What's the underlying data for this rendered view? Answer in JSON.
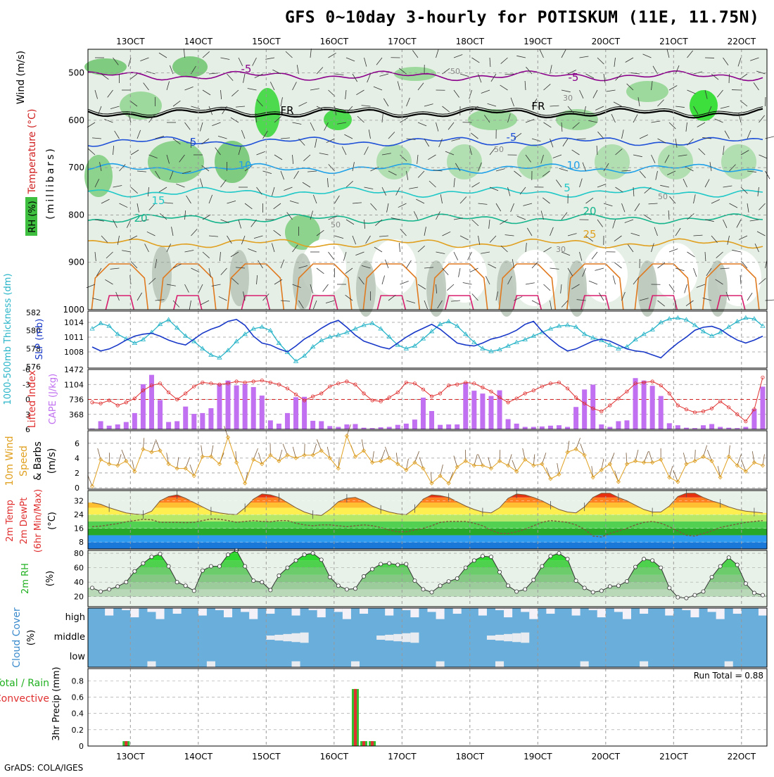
{
  "title": "GFS 0~10day 3-hourly for POTISKUM (11E, 11.75N)",
  "footer": "GrADS: COLA/IGES",
  "time_axis": {
    "labels": [
      "13OCT",
      "14OCT",
      "15OCT",
      "16OCT",
      "17OCT",
      "18OCT",
      "19OCT",
      "20OCT",
      "21OCT",
      "22OCT"
    ],
    "steps": 80,
    "first_label_step": 5
  },
  "chart_data": [
    {
      "type": "heatmap",
      "panel": "upper-air",
      "ylabels": [
        "Wind (m/s)",
        "Temperature (°C)",
        "RH (%)",
        "(millibars)"
      ],
      "yticks": [
        500,
        600,
        700,
        800,
        900,
        1000
      ],
      "ylim": [
        450,
        1000
      ],
      "rh_contour_labels": [
        "50",
        "30",
        "50",
        "50",
        "50",
        "30"
      ],
      "temperature_isotherms": [
        {
          "label": "-5",
          "level": 506,
          "color": "#8B008B"
        },
        {
          "label": "FR",
          "level": 585,
          "color": "#000000"
        },
        {
          "label": "-5",
          "level": 645,
          "color": "#1E50D8"
        },
        {
          "label": "10",
          "level": 702,
          "color": "#1EA0E8"
        },
        {
          "label": "15",
          "level": 752,
          "color": "#20C8C8"
        },
        {
          "label": "20",
          "level": 808,
          "color": "#14B48C"
        },
        {
          "label": "25",
          "level": 860,
          "color": "#E0A020"
        }
      ],
      "legend_extra": [
        "-5",
        "10",
        "5",
        "20",
        "25",
        "FR",
        "-5"
      ]
    },
    {
      "type": "line",
      "panel": "thickness-slp",
      "ylabel_left": "1000-500mb Thickness (dm)",
      "ylabel_right": "SLP (mb)",
      "yticks_left": [
        576,
        578,
        580,
        582
      ],
      "yticks_right": [
        1008,
        1011,
        1014
      ],
      "series": [
        {
          "name": "Thickness (dm)",
          "values": [
            580.2,
            580.8,
            580.5,
            579.6,
            579.1,
            578.6,
            579.0,
            579.8,
            580.7,
            581.2,
            580.3,
            579.4,
            578.8,
            578.0,
            577.3,
            577.0,
            577.8,
            578.8,
            579.6,
            580.2,
            580.4,
            580.0,
            578.6,
            577.6,
            576.6,
            577.2,
            578.2,
            578.9,
            579.3,
            579.5,
            579.8,
            580.2,
            580.6,
            580.8,
            580.2,
            579.3,
            578.4,
            578.0,
            578.3,
            579.1,
            579.9,
            580.7,
            581.0,
            580.5,
            579.6,
            578.7,
            578.0,
            577.7,
            577.9,
            578.3,
            578.7,
            579.0,
            579.4,
            579.8,
            580.2,
            580.5,
            580.6,
            580.4,
            579.6,
            579.2,
            578.9,
            578.4,
            578.0,
            578.2,
            579.0,
            579.6,
            580.1,
            580.9,
            581.3,
            581.4,
            581.2,
            580.6,
            579.9,
            579.4,
            579.8,
            580.4,
            581.0,
            581.4,
            581.3,
            580.5
          ]
        },
        {
          "name": "SLP (mb)",
          "values": [
            1009.0,
            1008.2,
            1008.6,
            1009.4,
            1010.4,
            1011.2,
            1011.6,
            1011.8,
            1011.2,
            1010.4,
            1009.8,
            1009.4,
            1010.6,
            1011.8,
            1012.6,
            1013.2,
            1014.2,
            1014.6,
            1013.4,
            1011.2,
            1009.8,
            1009.4,
            1008.6,
            1008.0,
            1009.2,
            1010.6,
            1011.6,
            1012.8,
            1013.8,
            1014.4,
            1013.0,
            1011.4,
            1010.2,
            1009.6,
            1009.0,
            1008.6,
            1009.8,
            1011.0,
            1012.0,
            1012.8,
            1013.6,
            1012.6,
            1011.2,
            1009.8,
            1009.4,
            1009.2,
            1009.8,
            1010.6,
            1011.0,
            1011.6,
            1012.4,
            1013.6,
            1014.2,
            1012.2,
            1010.6,
            1009.2,
            1008.2,
            1008.6,
            1009.4,
            1010.2,
            1010.6,
            1010.2,
            1009.4,
            1008.6,
            1008.2,
            1008.0,
            1007.4,
            1006.8,
            1008.4,
            1009.8,
            1011.0,
            1012.4,
            1013.0,
            1013.2,
            1012.6,
            1011.4,
            1010.4,
            1009.8,
            1010.4,
            1011.2
          ]
        }
      ]
    },
    {
      "type": "bar",
      "panel": "lifted-cape",
      "ylabel_left": "Lifted Index",
      "ylabel_right": "CAPE (J/kg)",
      "yticks_left": [
        "-6",
        "-3",
        "0",
        "3",
        "6"
      ],
      "yticks_right": [
        "368",
        "736",
        "1104",
        "1472"
      ],
      "series": [
        {
          "name": "CAPE (J/kg)",
          "values": [
            20,
            200,
            90,
            120,
            180,
            400,
            1110,
            1340,
            720,
            180,
            200,
            560,
            380,
            400,
            520,
            1120,
            1200,
            1080,
            1120,
            1040,
            830,
            220,
            140,
            400,
            790,
            800,
            210,
            200,
            80,
            60,
            120,
            130,
            40,
            30,
            50,
            60,
            110,
            140,
            240,
            780,
            450,
            110,
            120,
            120,
            1150,
            950,
            880,
            820,
            960,
            250,
            140,
            60,
            60,
            70,
            90,
            100,
            60,
            550,
            980,
            1100,
            120,
            60,
            200,
            220,
            1260,
            1200,
            1070,
            820,
            150,
            100,
            40,
            30,
            100,
            130,
            60,
            40,
            30,
            60,
            500,
            1050
          ]
        },
        {
          "name": "Lifted Index",
          "values": [
            0.6,
            0.8,
            0.2,
            1.2,
            0.6,
            -0.2,
            -1.8,
            -2.8,
            -3.2,
            -1.4,
            0.0,
            -1.2,
            -2.6,
            -3.4,
            -3.2,
            -3.0,
            -3.2,
            -3.6,
            -3.4,
            -3.6,
            -3.8,
            -3.4,
            -3.0,
            -2.2,
            -1.0,
            0.2,
            -0.6,
            -1.2,
            -2.6,
            -3.2,
            -3.6,
            -3.0,
            -1.2,
            0.2,
            0.4,
            -0.4,
            -1.4,
            -3.4,
            -3.2,
            -2.0,
            -0.6,
            -1.2,
            -2.8,
            -3.0,
            -3.4,
            -3.2,
            -2.4,
            -1.6,
            -0.4,
            0.6,
            -0.2,
            -1.2,
            -1.8,
            -2.6,
            -3.2,
            -3.4,
            -2.2,
            -0.4,
            0.8,
            1.8,
            2.4,
            1.2,
            -0.2,
            -1.6,
            -3.2,
            -3.4,
            -3.6,
            -2.8,
            -1.2,
            1.2,
            2.0,
            2.6,
            2.4,
            1.8,
            0.4,
            1.6,
            3.0,
            4.4,
            2.0,
            -4.4
          ]
        }
      ]
    },
    {
      "type": "line",
      "panel": "wind-10m",
      "ylabel_lines": [
        "10m Wind",
        "Speed",
        "& Barbs",
        "(m/s)"
      ],
      "yticks": [
        "0",
        "2",
        "4",
        "6"
      ],
      "series": [
        {
          "name": "10m wind speed (m/s)",
          "values": [
            0.2,
            3.8,
            3.2,
            3.0,
            3.6,
            2.2,
            5.2,
            4.8,
            5.0,
            3.2,
            2.6,
            2.6,
            1.6,
            4.2,
            4.2,
            3.2,
            6.8,
            3.4,
            0.6,
            3.8,
            3.2,
            4.4,
            3.6,
            4.4,
            4.0,
            4.4,
            4.4,
            5.0,
            4.0,
            2.6,
            7.0,
            4.2,
            5.0,
            3.4,
            3.6,
            4.0,
            3.2,
            2.4,
            3.4,
            2.6,
            0.6,
            1.6,
            0.6,
            2.8,
            3.6,
            3.0,
            3.0,
            2.6,
            3.6,
            3.0,
            2.2,
            3.8,
            3.0,
            3.2,
            1.2,
            1.8,
            4.8,
            5.2,
            4.4,
            1.4,
            2.4,
            3.2,
            0.8,
            3.2,
            3.6,
            3.4,
            3.4,
            3.8,
            1.4,
            0.8,
            3.2,
            3.6,
            4.2,
            3.6,
            1.4,
            4.2,
            3.0,
            2.2,
            3.4,
            3.0
          ]
        }
      ]
    },
    {
      "type": "area",
      "panel": "temp-dewpoint",
      "ylabel_lines": [
        "2m Temp",
        "2m DewPt",
        "(6hr Min/Max)",
        "(°C)"
      ],
      "yticks": [
        "8",
        "16",
        "24",
        "32"
      ],
      "series": [
        {
          "name": "2m Temp (°C)",
          "values": [
            31.0,
            30.0,
            28.0,
            26.5,
            25.0,
            24.3,
            24.0,
            26.0,
            32.0,
            34.5,
            35.5,
            33.5,
            31.0,
            28.5,
            26.0,
            25.0,
            24.3,
            24.0,
            28.0,
            33.0,
            36.0,
            35.5,
            34.0,
            31.0,
            28.0,
            25.5,
            24.0,
            23.5,
            27.0,
            31.5,
            33.5,
            34.0,
            32.0,
            29.0,
            27.0,
            25.5,
            24.5,
            24.0,
            27.5,
            33.0,
            35.5,
            35.0,
            34.0,
            31.5,
            29.0,
            27.0,
            25.5,
            25.0,
            28.0,
            33.5,
            36.0,
            35.5,
            34.0,
            32.0,
            29.5,
            27.0,
            25.5,
            25.0,
            28.5,
            34.0,
            36.5,
            36.5,
            34.0,
            32.0,
            29.5,
            27.0,
            25.5,
            25.5,
            29.0,
            34.5,
            36.5,
            36.5,
            34.0,
            32.0,
            30.5,
            28.5,
            27.0,
            26.0,
            25.5,
            25.0
          ]
        },
        {
          "name": "2m DewPt (°C)",
          "values": [
            17.0,
            17.3,
            18.0,
            18.8,
            19.8,
            20.5,
            21.3,
            21.0,
            19.5,
            19.5,
            19.5,
            19.3,
            19.5,
            20.5,
            21.5,
            21.3,
            20.5,
            19.5,
            20.0,
            20.5,
            20.0,
            19.8,
            20.5,
            20.5,
            19.0,
            18.0,
            17.5,
            18.0,
            18.0,
            17.5,
            17.0,
            17.5,
            18.0,
            17.5,
            16.5,
            15.0,
            14.0,
            14.0,
            15.0,
            16.0,
            17.5,
            19.5,
            20.0,
            20.0,
            20.0,
            19.0,
            17.5,
            15.0,
            13.0,
            13.0,
            14.0,
            15.5,
            17.5,
            19.5,
            20.5,
            20.0,
            19.5,
            18.0,
            15.5,
            11.5,
            11.0,
            13.0,
            14.5,
            16.0,
            18.0,
            19.5,
            20.0,
            19.0,
            17.0,
            14.5,
            12.0,
            11.5,
            13.0,
            14.5,
            16.5,
            17.5,
            18.5,
            19.5,
            20.0,
            20.5
          ]
        }
      ]
    },
    {
      "type": "area",
      "panel": "rh-2m",
      "ylabel_lines": [
        "2m RH",
        "(%)"
      ],
      "yticks": [
        "20",
        "40",
        "60",
        "80"
      ],
      "series": [
        {
          "name": "2m RH (%)",
          "values": [
            32,
            27,
            30,
            34,
            40,
            55,
            66,
            75,
            79,
            62,
            40,
            35,
            28,
            56,
            62,
            62,
            78,
            84,
            62,
            42,
            40,
            29,
            49,
            60,
            70,
            78,
            80,
            71,
            47,
            35,
            30,
            31,
            48,
            58,
            65,
            66,
            64,
            65,
            42,
            30,
            26,
            35,
            41,
            45,
            60,
            70,
            76,
            75,
            54,
            35,
            27,
            30,
            43,
            62,
            76,
            80,
            72,
            42,
            32,
            26,
            28,
            34,
            35,
            41,
            61,
            72,
            70,
            60,
            32,
            19,
            18,
            22,
            27,
            47,
            62,
            74,
            64,
            38,
            25,
            22
          ]
        }
      ]
    },
    {
      "type": "heatmap",
      "panel": "cloud-cover",
      "ylabel_lines": [
        "Cloud Cover",
        "(%)"
      ],
      "levels": [
        "high",
        "middle",
        "low"
      ]
    },
    {
      "type": "bar",
      "panel": "precip",
      "ylabel_lines": [
        "Total / Rain",
        "Convective",
        "3hr Precip (mm)"
      ],
      "yticks": [
        "0",
        "0.2",
        "0.4",
        "0.6",
        "0.8"
      ],
      "run_total_text": "Run Total = 0.88",
      "series": [
        {
          "name": "3hr Precip (mm)",
          "values": [
            0,
            0,
            0,
            0,
            0.06,
            0,
            0,
            0,
            0,
            0,
            0,
            0,
            0,
            0,
            0,
            0,
            0,
            0,
            0,
            0,
            0,
            0,
            0,
            0,
            0,
            0,
            0,
            0,
            0,
            0,
            0,
            0.7,
            0.06,
            0.06,
            0,
            0,
            0,
            0,
            0,
            0,
            0,
            0,
            0,
            0,
            0,
            0,
            0,
            0,
            0,
            0,
            0,
            0,
            0,
            0,
            0,
            0,
            0,
            0,
            0,
            0,
            0,
            0,
            0,
            0,
            0,
            0,
            0,
            0,
            0,
            0,
            0,
            0,
            0,
            0,
            0,
            0,
            0,
            0,
            0,
            0
          ]
        }
      ]
    }
  ]
}
